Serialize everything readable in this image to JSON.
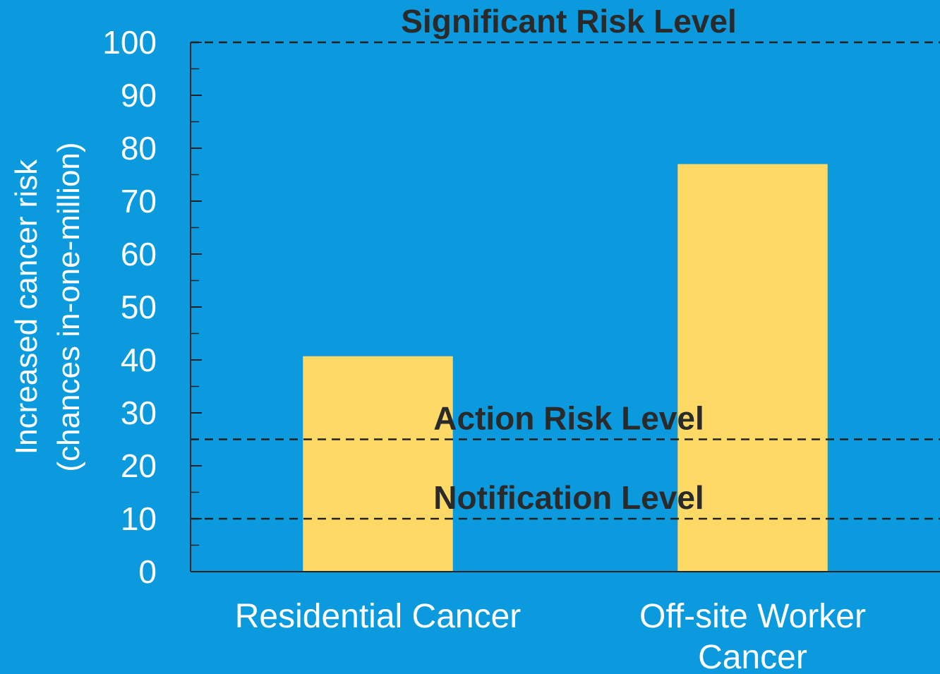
{
  "chart_data": {
    "type": "bar",
    "ylabel": [
      "Increased cancer risk",
      "(chances in-one-million)"
    ],
    "categories": [
      "Residential Cancer",
      "Off-site Worker Cancer"
    ],
    "values": [
      40.7,
      77
    ],
    "color": "#ffd966",
    "ylim": [
      0,
      100
    ],
    "yticks": [
      0,
      10,
      20,
      30,
      40,
      50,
      60,
      70,
      80,
      90,
      100
    ],
    "yticks_minor": [
      5,
      15,
      25,
      35,
      45,
      55,
      65,
      75,
      85,
      95
    ],
    "reference_lines": [
      {
        "value": 100,
        "label": "Significant Risk Level"
      },
      {
        "value": 25,
        "label": "Action Risk Level"
      },
      {
        "value": 10,
        "label": "Notification Level"
      }
    ]
  }
}
